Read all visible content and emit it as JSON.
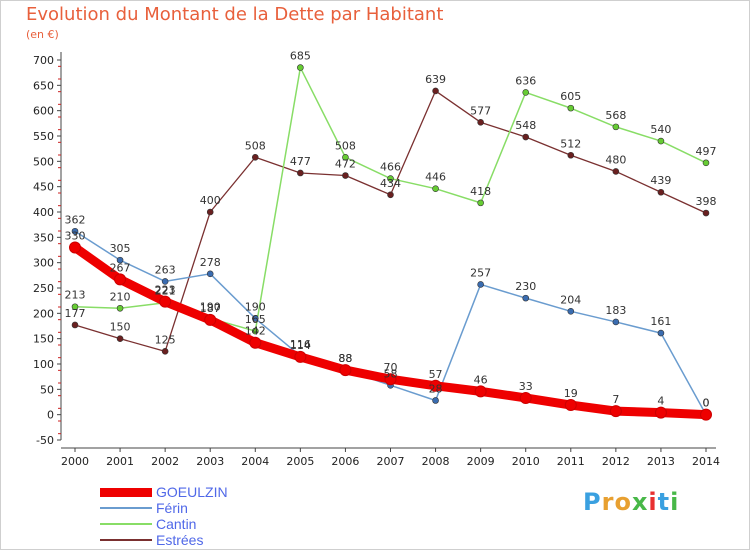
{
  "title": "Evolution du Montant de la Dette par Habitant",
  "subtitle": "(en €)",
  "logo": {
    "letters": [
      "P",
      "r",
      "o",
      "x",
      "i",
      "t",
      "i"
    ],
    "colors": [
      "#3aa0e0",
      "#e8a030",
      "#e8a030",
      "#48b848",
      "#e83030",
      "#3aa0e0",
      "#48b848"
    ]
  },
  "chart_data": {
    "type": "line",
    "x": [
      "2000",
      "2001",
      "2002",
      "2003",
      "2004",
      "2005",
      "2006",
      "2007",
      "2008",
      "2009",
      "2010",
      "2011",
      "2012",
      "2013",
      "2014"
    ],
    "ylim": [
      -50,
      700
    ],
    "yticks": [
      "-50",
      "0",
      "50",
      "100",
      "150",
      "200",
      "250",
      "300",
      "350",
      "400",
      "450",
      "500",
      "550",
      "600",
      "650",
      "700"
    ],
    "grid": false,
    "legend_position": "bottom-left",
    "series": [
      {
        "name": "GOEULZIN",
        "color": "#ee0000",
        "width": 9,
        "marker": "#ee0000",
        "values": [
          330,
          267,
          223,
          187,
          142,
          114,
          88,
          70,
          57,
          46,
          33,
          19,
          7,
          4,
          0
        ],
        "labels": [
          "330",
          "267",
          "223",
          "187",
          "142",
          "114",
          "88",
          "70",
          "57",
          "46",
          "33",
          "19",
          "7",
          "4",
          "0"
        ]
      },
      {
        "name": "Férin",
        "color": "#6a9ccf",
        "width": 1.5,
        "marker": "#3a6cb0",
        "values": [
          362,
          305,
          263,
          278,
          190,
          116,
          88,
          58,
          28,
          257,
          230,
          204,
          183,
          161,
          0
        ],
        "labels": [
          "362",
          "305",
          "263",
          "278",
          "190",
          "116",
          "88",
          "58",
          "28",
          "257",
          "230",
          "204",
          "183",
          "161",
          "0"
        ]
      },
      {
        "name": "Cantin",
        "color": "#88dd66",
        "width": 1.5,
        "marker": "#66cc33",
        "values": [
          213,
          210,
          221,
          190,
          165,
          685,
          508,
          466,
          446,
          418,
          636,
          605,
          568,
          540,
          497
        ],
        "labels": [
          "213",
          "210",
          "221",
          "190",
          "165",
          "685",
          "508",
          "466",
          "446",
          "418",
          "636",
          "605",
          "568",
          "540",
          "497"
        ]
      },
      {
        "name": "Estrées",
        "color": "#7a3030",
        "width": 1.3,
        "marker": "#6a2020",
        "values": [
          177,
          150,
          125,
          400,
          508,
          477,
          472,
          434,
          639,
          577,
          548,
          512,
          480,
          439,
          398
        ],
        "labels": [
          "177",
          "150",
          "125",
          "400",
          "508",
          "477",
          "472",
          "434",
          "639",
          "577",
          "548",
          "512",
          "480",
          "439",
          "398"
        ]
      }
    ]
  }
}
